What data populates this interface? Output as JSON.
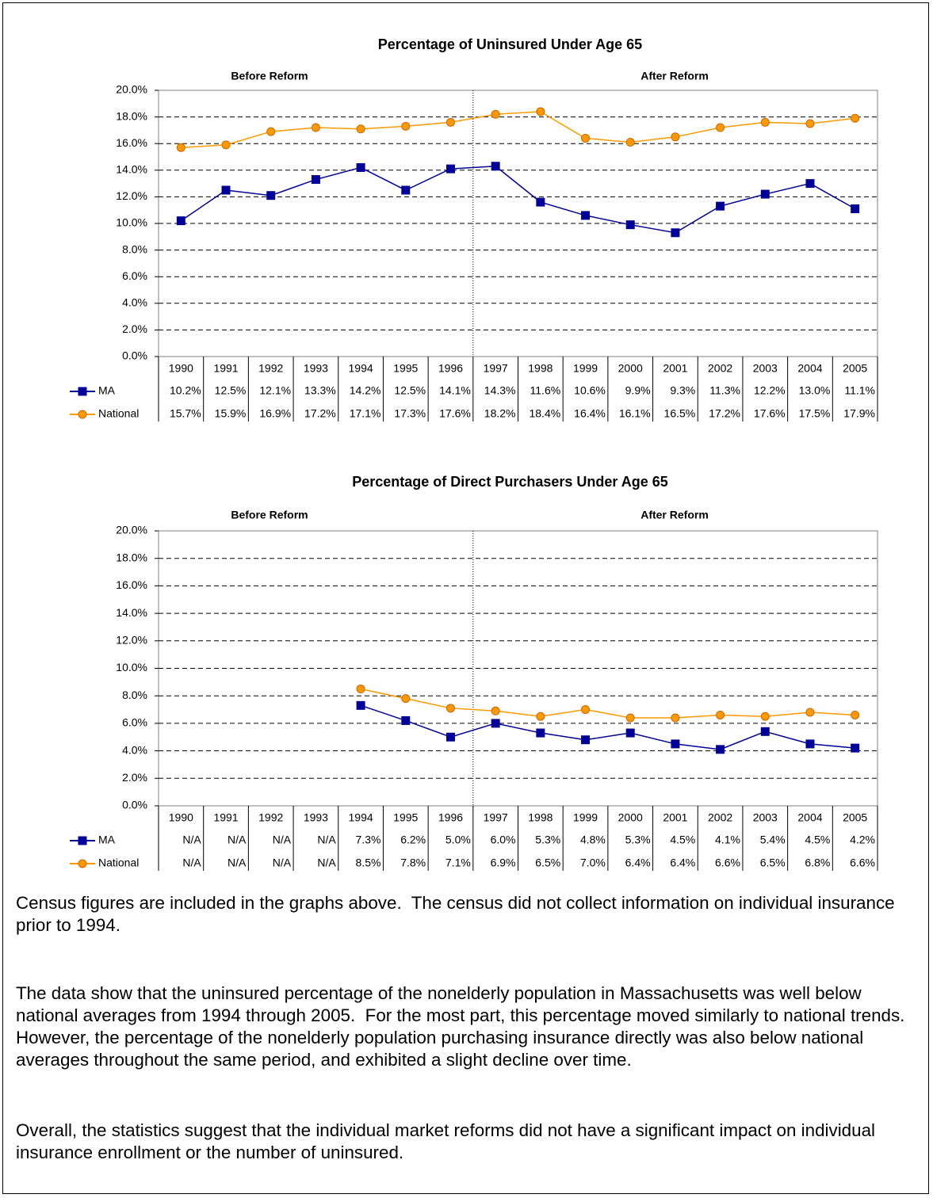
{
  "chart_data": [
    {
      "type": "line",
      "title": "Percentage of Uninsured Under Age 65",
      "annotations": [
        "Before Reform",
        "After Reform"
      ],
      "categories": [
        "1990",
        "1991",
        "1992",
        "1993",
        "1994",
        "1995",
        "1996",
        "1997",
        "1998",
        "1999",
        "2000",
        "2001",
        "2002",
        "2003",
        "2004",
        "2005"
      ],
      "ylim": [
        0,
        20
      ],
      "yticks": [
        {
          "value": 0,
          "label": "0.0%"
        },
        {
          "value": 2,
          "label": "2.0%"
        },
        {
          "value": 4,
          "label": "4.0%"
        },
        {
          "value": 6,
          "label": "6.0%"
        },
        {
          "value": 8,
          "label": "8.0%"
        },
        {
          "value": 10,
          "label": "10.0%"
        },
        {
          "value": 12,
          "label": "12.0%"
        },
        {
          "value": 14,
          "label": "14.0%"
        },
        {
          "value": 16,
          "label": "16.0%"
        },
        {
          "value": 18,
          "label": "18.0%"
        },
        {
          "value": 20,
          "label": "20.0%"
        }
      ],
      "grid": true,
      "series": [
        {
          "name": "MA",
          "color": "#000099",
          "marker": "square",
          "values": [
            10.2,
            12.5,
            12.1,
            13.3,
            14.2,
            12.5,
            14.1,
            14.3,
            11.6,
            10.6,
            9.9,
            9.3,
            11.3,
            12.2,
            13.0,
            11.1
          ],
          "value_labels": [
            "10.2%",
            "12.5%",
            "12.1%",
            "13.3%",
            "14.2%",
            "12.5%",
            "14.1%",
            "14.3%",
            "11.6%",
            "10.6%",
            "9.9%",
            "9.3%",
            "11.3%",
            "12.2%",
            "13.0%",
            "11.1%"
          ]
        },
        {
          "name": "National",
          "color": "#FF9900",
          "marker": "circle",
          "values": [
            15.7,
            15.9,
            16.9,
            17.2,
            17.1,
            17.3,
            17.6,
            18.2,
            18.4,
            16.4,
            16.1,
            16.5,
            17.2,
            17.6,
            17.5,
            17.9
          ],
          "value_labels": [
            "15.7%",
            "15.9%",
            "16.9%",
            "17.2%",
            "17.1%",
            "17.3%",
            "17.6%",
            "18.2%",
            "18.4%",
            "16.4%",
            "16.1%",
            "16.5%",
            "17.2%",
            "17.6%",
            "17.5%",
            "17.9%"
          ]
        }
      ]
    },
    {
      "type": "line",
      "title": "Percentage of Direct Purchasers Under Age 65",
      "annotations": [
        "Before Reform",
        "After Reform"
      ],
      "categories": [
        "1990",
        "1991",
        "1992",
        "1993",
        "1994",
        "1995",
        "1996",
        "1997",
        "1998",
        "1999",
        "2000",
        "2001",
        "2002",
        "2003",
        "2004",
        "2005"
      ],
      "ylim": [
        0,
        20
      ],
      "yticks": [
        {
          "value": 0,
          "label": "0.0%"
        },
        {
          "value": 2,
          "label": "2.0%"
        },
        {
          "value": 4,
          "label": "4.0%"
        },
        {
          "value": 6,
          "label": "6.0%"
        },
        {
          "value": 8,
          "label": "8.0%"
        },
        {
          "value": 10,
          "label": "10.0%"
        },
        {
          "value": 12,
          "label": "12.0%"
        },
        {
          "value": 14,
          "label": "14.0%"
        },
        {
          "value": 16,
          "label": "16.0%"
        },
        {
          "value": 18,
          "label": "18.0%"
        },
        {
          "value": 20,
          "label": "20.0%"
        }
      ],
      "grid": true,
      "series": [
        {
          "name": "MA",
          "color": "#000099",
          "marker": "square",
          "values": [
            null,
            null,
            null,
            null,
            7.3,
            6.2,
            5.0,
            6.0,
            5.3,
            4.8,
            5.3,
            4.5,
            4.1,
            5.4,
            4.5,
            4.2
          ],
          "value_labels": [
            "N/A",
            "N/A",
            "N/A",
            "N/A",
            "7.3%",
            "6.2%",
            "5.0%",
            "6.0%",
            "5.3%",
            "4.8%",
            "5.3%",
            "4.5%",
            "4.1%",
            "5.4%",
            "4.5%",
            "4.2%"
          ]
        },
        {
          "name": "National",
          "color": "#FF9900",
          "marker": "circle",
          "values": [
            null,
            null,
            null,
            null,
            8.5,
            7.8,
            7.1,
            6.9,
            6.5,
            7.0,
            6.4,
            6.4,
            6.6,
            6.5,
            6.8,
            6.6
          ],
          "value_labels": [
            "N/A",
            "N/A",
            "N/A",
            "N/A",
            "8.5%",
            "7.8%",
            "7.1%",
            "6.9%",
            "6.5%",
            "7.0%",
            "6.4%",
            "6.4%",
            "6.6%",
            "6.5%",
            "6.8%",
            "6.6%"
          ]
        }
      ]
    }
  ],
  "paragraphs": [
    "Census figures are included in the graphs above.  The census did not collect information on individual insurance prior to 1994.",
    "The data show that the uninsured percentage of the nonelderly population in Massachusetts was well below national averages from 1994 through 2005.  For the most part, this percentage moved similarly to national trends.  However, the percentage of the nonelderly population purchasing insurance directly was also below national averages throughout the same period, and exhibited a slight decline over time.",
    "Overall, the statistics suggest that the individual market reforms did not have a significant impact on individual insurance enrollment or the number of uninsured."
  ]
}
